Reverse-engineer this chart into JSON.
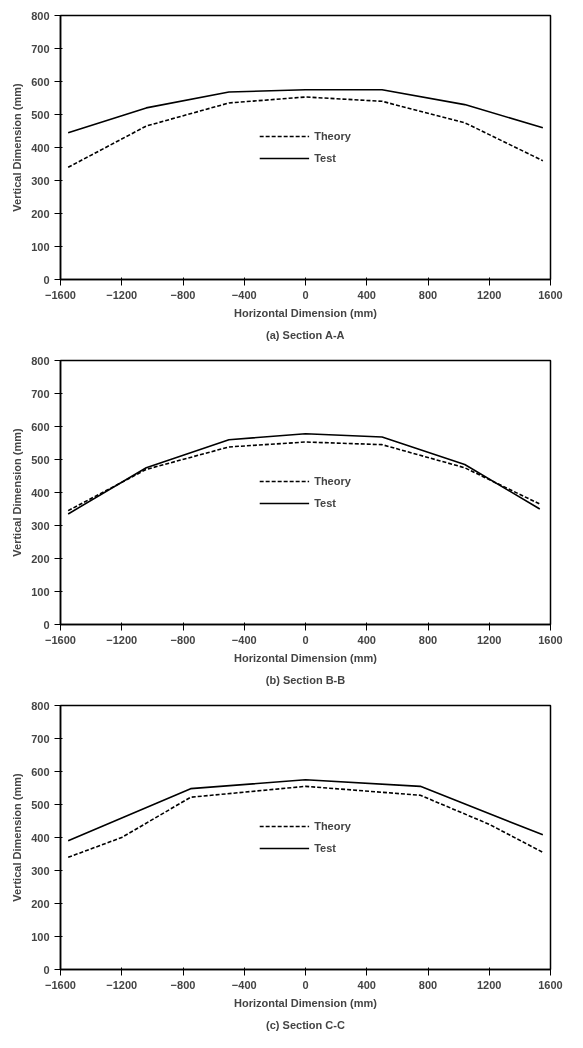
{
  "chart_data": [
    {
      "type": "line",
      "xlabel": "Horizontal Dimension (mm)",
      "ylabel": "Vertical Dimension (mm)",
      "annotations": [
        "(a) Section A-A"
      ],
      "xlim": [
        -1600,
        1600
      ],
      "ylim": [
        0,
        800
      ],
      "xticks": [
        -1600,
        -1200,
        -800,
        -400,
        0,
        400,
        800,
        1200,
        1600
      ],
      "yticks": [
        0,
        100,
        200,
        300,
        400,
        500,
        600,
        700,
        800
      ],
      "grid": false,
      "legend": "center",
      "series": [
        {
          "name": "Theory",
          "color": "#000000",
          "line_style": "dashed",
          "x": [
            -1550,
            -1040,
            -500,
            0,
            500,
            1040,
            1550
          ],
          "values": [
            340,
            465,
            535,
            553,
            540,
            475,
            360
          ]
        },
        {
          "name": "Test",
          "color": "#000000",
          "line_style": "solid",
          "x": [
            -1550,
            -1040,
            -500,
            0,
            500,
            1040,
            1550
          ],
          "values": [
            445,
            520,
            568,
            575,
            575,
            530,
            460
          ]
        }
      ]
    },
    {
      "type": "line",
      "xlabel": "Horizontal Dimension (mm)",
      "ylabel": "Vertical Dimension (mm)",
      "annotations": [
        "(b) Section B-B"
      ],
      "xlim": [
        -1600,
        1600
      ],
      "ylim": [
        0,
        800
      ],
      "xticks": [
        -1600,
        -1200,
        -800,
        -400,
        0,
        400,
        800,
        1200,
        1600
      ],
      "yticks": [
        0,
        100,
        200,
        300,
        400,
        500,
        600,
        700,
        800
      ],
      "grid": false,
      "legend": "center",
      "series": [
        {
          "name": "Theory",
          "color": "#000000",
          "line_style": "dashed",
          "x": [
            -1550,
            -1040,
            -500,
            0,
            500,
            1040,
            1530
          ],
          "values": [
            345,
            470,
            538,
            553,
            545,
            475,
            365
          ]
        },
        {
          "name": "Test",
          "color": "#000000",
          "line_style": "solid",
          "x": [
            -1550,
            -1040,
            -500,
            0,
            500,
            1040,
            1530
          ],
          "values": [
            335,
            475,
            560,
            578,
            568,
            485,
            350
          ]
        }
      ]
    },
    {
      "type": "line",
      "xlabel": "Horizontal Dimension (mm)",
      "ylabel": "Vertical Dimension (mm)",
      "annotations": [
        "(c) Section C-C"
      ],
      "xlim": [
        -1600,
        1600
      ],
      "ylim": [
        0,
        800
      ],
      "xticks": [
        -1600,
        -1200,
        -800,
        -400,
        0,
        400,
        800,
        1200,
        1600
      ],
      "yticks": [
        0,
        100,
        200,
        300,
        400,
        500,
        600,
        700,
        800
      ],
      "grid": false,
      "legend": "center",
      "series": [
        {
          "name": "Theory",
          "color": "#000000",
          "line_style": "dashed",
          "x": [
            -1550,
            -1200,
            -750,
            0,
            750,
            1200,
            1550
          ],
          "values": [
            340,
            400,
            522,
            555,
            528,
            440,
            355
          ]
        },
        {
          "name": "Test",
          "color": "#000000",
          "line_style": "solid",
          "x": [
            -1550,
            -750,
            0,
            750,
            1550
          ],
          "values": [
            390,
            548,
            575,
            555,
            408
          ]
        }
      ]
    }
  ]
}
